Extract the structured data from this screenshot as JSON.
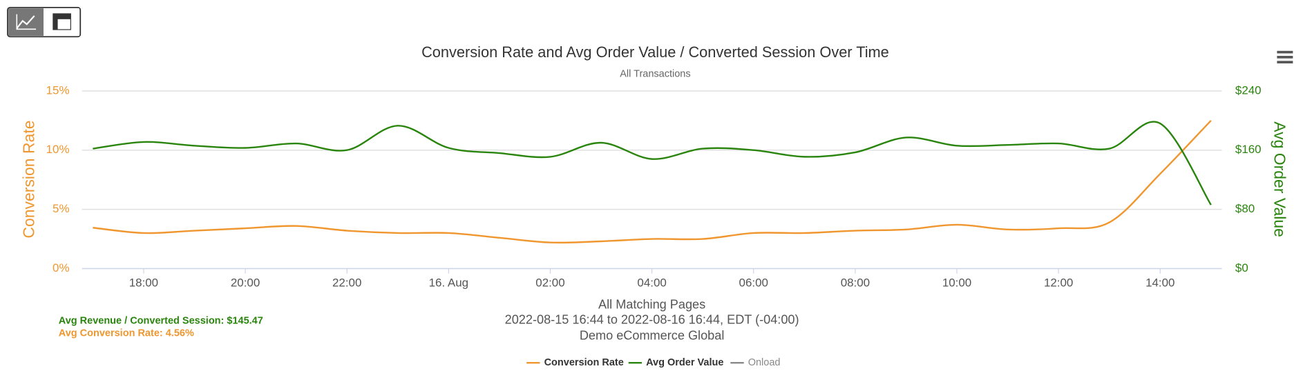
{
  "chart_data": {
    "type": "line",
    "title": "Conversion Rate and Avg Order Value / Converted Session Over Time",
    "subtitle": "All Transactions",
    "y_label": "Conversion Rate",
    "y2_label": "Avg Order Value",
    "categories": [
      null,
      "18:00",
      null,
      "20:00",
      null,
      "22:00",
      null,
      "16. Aug",
      null,
      "02:00",
      null,
      "04:00",
      null,
      "06:00",
      null,
      "08:00",
      null,
      "10:00",
      null,
      "12:00",
      null,
      "14:00",
      null
    ],
    "ylim": [
      0,
      15
    ],
    "yticks": [
      {
        "value": 0,
        "label": "0%"
      },
      {
        "value": 5,
        "label": "5%"
      },
      {
        "value": 10,
        "label": "10%"
      },
      {
        "value": 15,
        "label": "15%"
      }
    ],
    "y2lim": [
      0,
      240
    ],
    "y2ticks": [
      {
        "value": 0,
        "label": "$0"
      },
      {
        "value": 80,
        "label": "$80"
      },
      {
        "value": 160,
        "label": "$160"
      },
      {
        "value": 240,
        "label": "$240"
      }
    ],
    "grid": true,
    "series": [
      {
        "name": "Conversion Rate",
        "color": "#f0962f",
        "values": [
          3.45,
          3.0,
          3.2,
          3.4,
          3.6,
          3.2,
          3.0,
          3.0,
          2.6,
          2.2,
          2.3,
          2.5,
          2.5,
          3.0,
          3.0,
          3.2,
          3.3,
          3.7,
          3.3,
          3.4,
          3.9,
          8.0,
          12.5
        ]
      },
      {
        "name": "Avg Order Value",
        "color": "#2a850e",
        "axis": "y2",
        "values": [
          162,
          171,
          166,
          163,
          169,
          160,
          193,
          163,
          156,
          151,
          170,
          148,
          162,
          160,
          151,
          157,
          177,
          166,
          167,
          169,
          162,
          196,
          86
        ]
      },
      {
        "name": "Onload",
        "color": "#888888",
        "values": [
          null,
          null,
          null,
          null,
          null,
          null,
          null,
          null,
          null,
          null,
          null,
          null,
          null,
          null,
          null,
          null,
          null,
          null,
          null,
          null,
          null,
          null,
          null
        ]
      }
    ],
    "caption": [
      "All Matching Pages",
      "2022-08-15 16:44 to 2022-08-16 16:44, EDT (-04:00)",
      "Demo eCommerce Global"
    ],
    "stats": [
      "Avg Revenue / Converted Session: $145.47",
      "Avg Conversion Rate: 4.56%"
    ]
  }
}
